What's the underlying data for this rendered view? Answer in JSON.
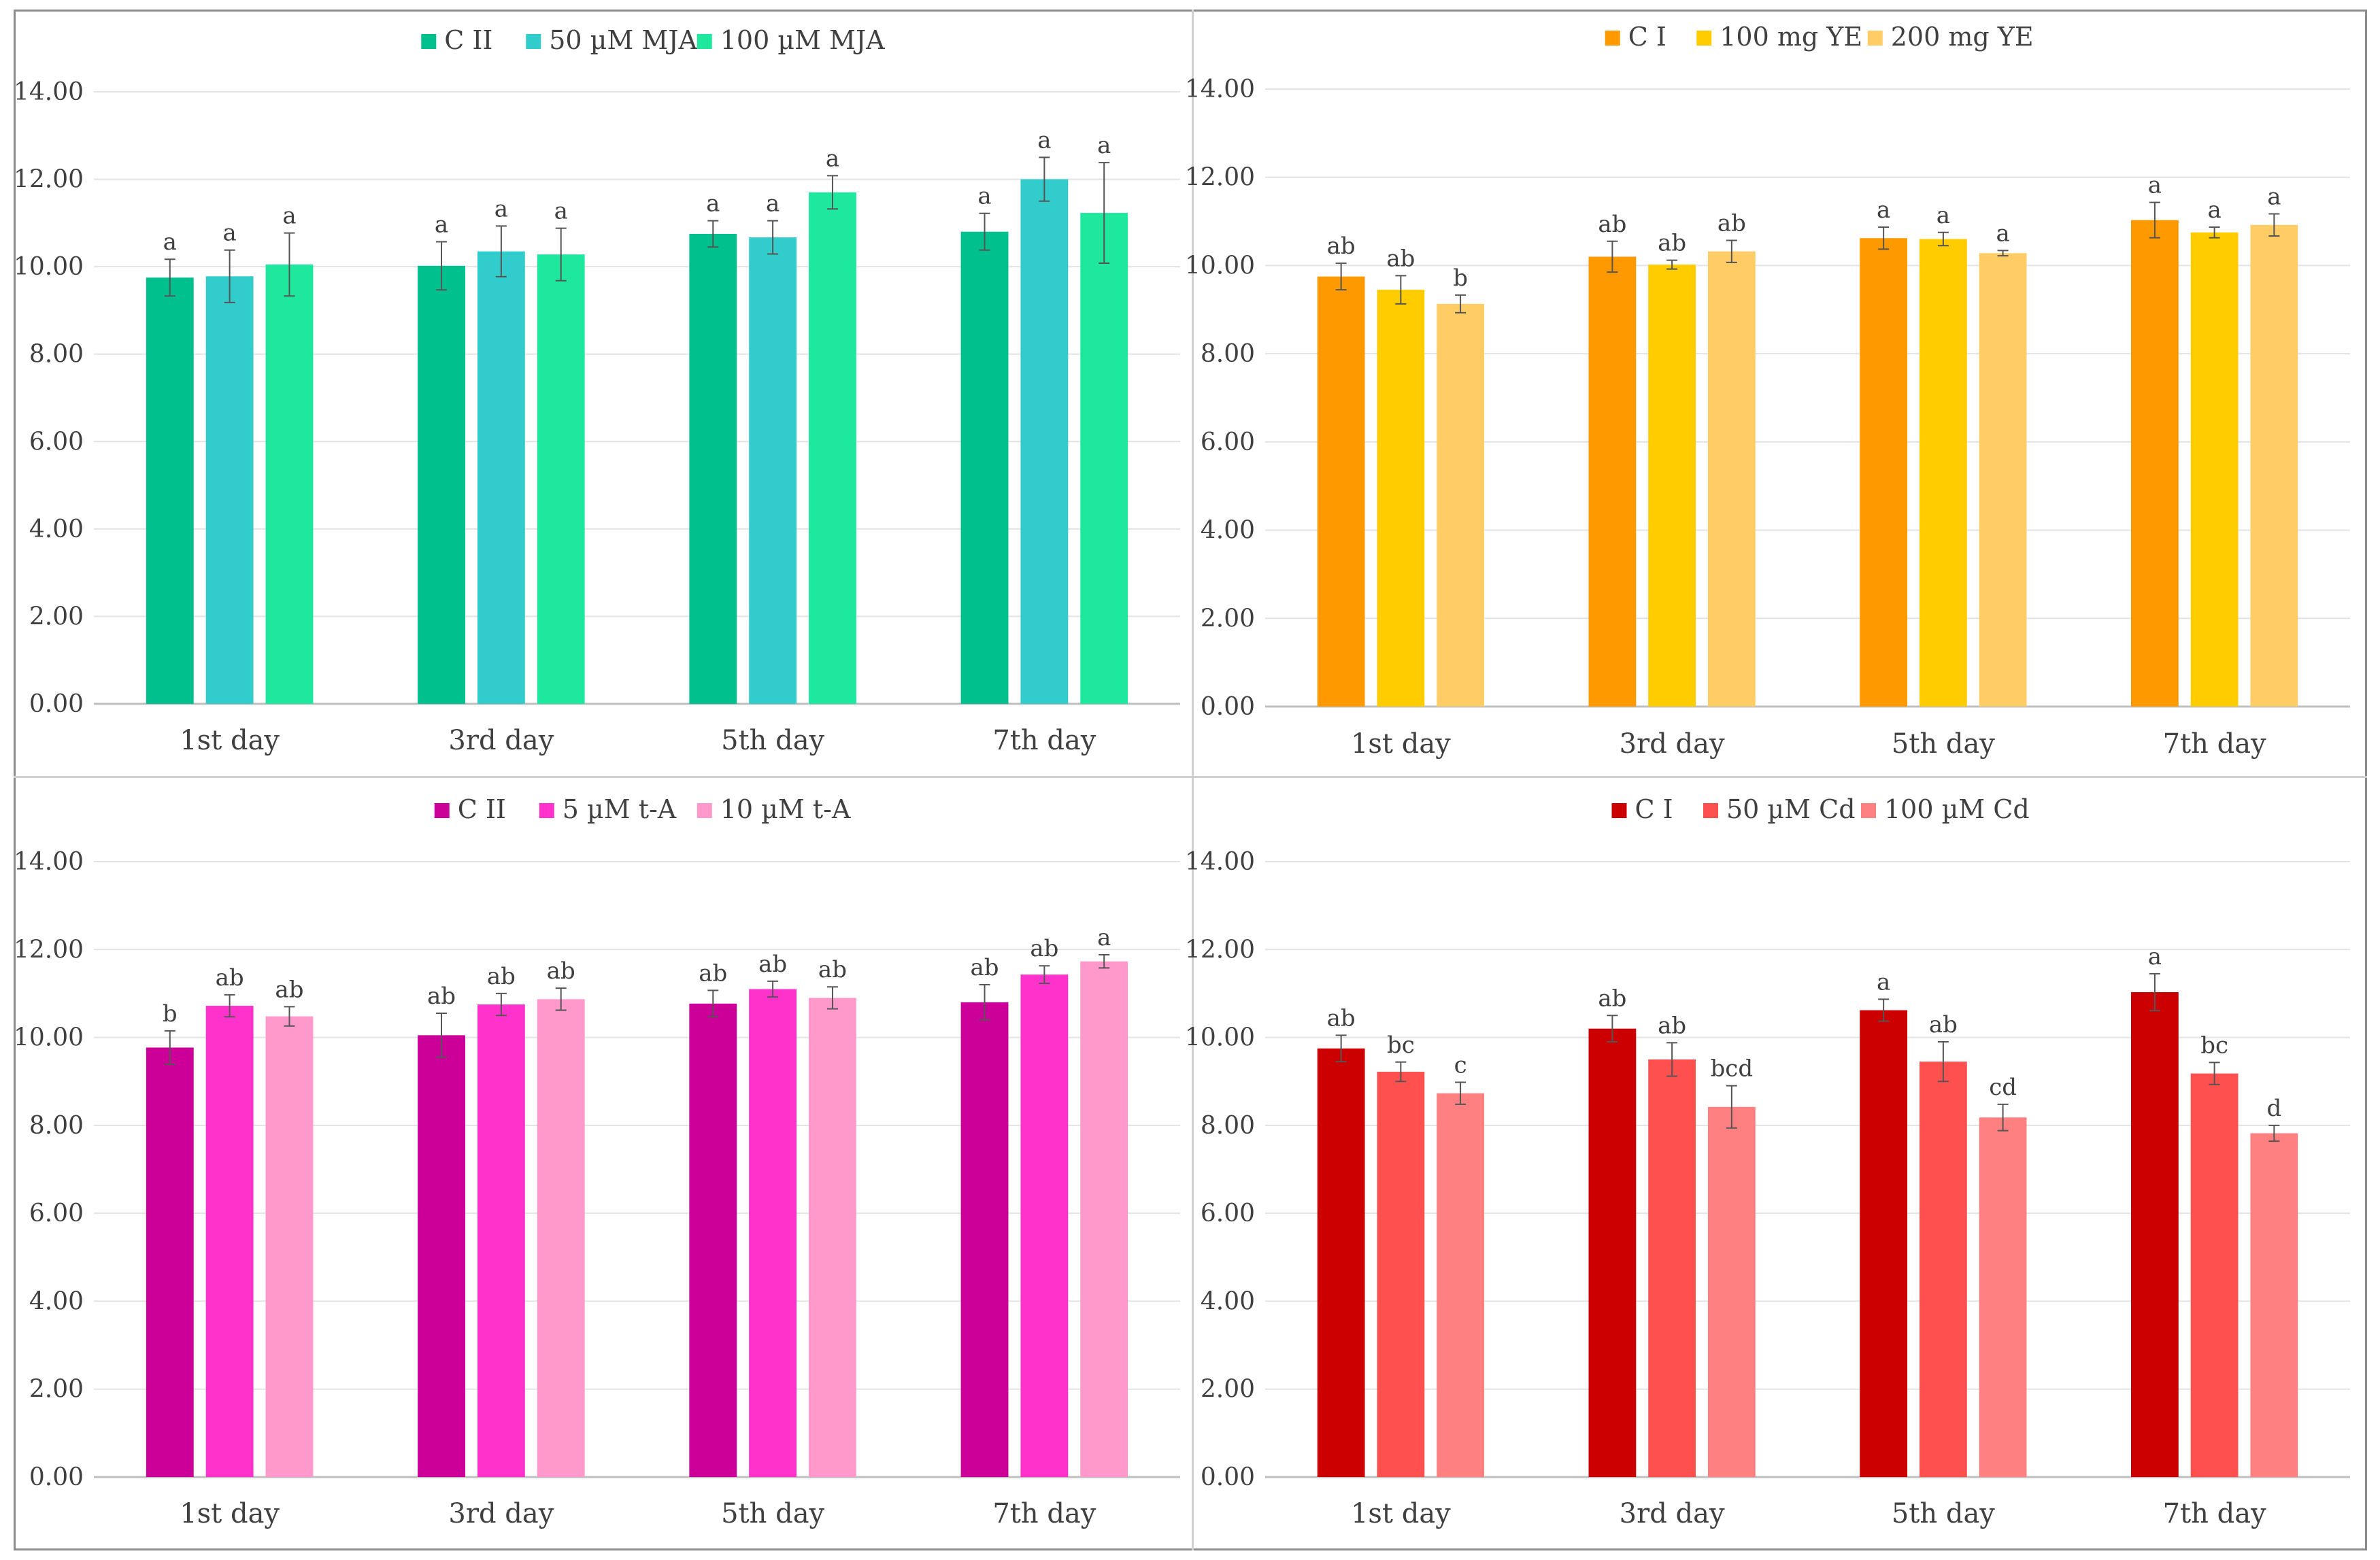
{
  "chart_data": [
    {
      "type": "bar",
      "categories": [
        "1st day",
        "3rd day",
        "5th day",
        "7th day"
      ],
      "ylim": [
        0,
        14
      ],
      "yticks": [
        "0.00",
        "2.00",
        "4.00",
        "6.00",
        "8.00",
        "10.00",
        "12.00",
        "14.00"
      ],
      "legend_position": "top-center",
      "grid": true,
      "series": [
        {
          "name": "C II",
          "color": "#00c08e",
          "values": [
            9.75,
            10.02,
            10.75,
            10.8
          ],
          "errors": [
            0.42,
            0.55,
            0.3,
            0.42
          ],
          "labels": [
            "a",
            "a",
            "a",
            "a"
          ]
        },
        {
          "name": "50 µM MJA",
          "color": "#33cccc",
          "values": [
            9.78,
            10.35,
            10.67,
            12.0
          ],
          "errors": [
            0.6,
            0.58,
            0.38,
            0.5
          ],
          "labels": [
            "a",
            "a",
            "a",
            "a"
          ]
        },
        {
          "name": "100 µM MJA",
          "color": "#1ee89e",
          "values": [
            10.05,
            10.28,
            11.7,
            11.23
          ],
          "errors": [
            0.72,
            0.6,
            0.38,
            1.15
          ],
          "labels": [
            "a",
            "a",
            "a",
            "a"
          ]
        }
      ]
    },
    {
      "type": "bar",
      "categories": [
        "1st day",
        "3rd day",
        "5th day",
        "7th day"
      ],
      "ylim": [
        0,
        14
      ],
      "yticks": [
        "0.00",
        "2.00",
        "4.00",
        "6.00",
        "8.00",
        "10.00",
        "12.00",
        "14.00"
      ],
      "legend_position": "top-center",
      "grid": true,
      "series": [
        {
          "name": "C I",
          "color": "#ff9900",
          "values": [
            9.75,
            10.2,
            10.62,
            11.03
          ],
          "errors": [
            0.3,
            0.35,
            0.25,
            0.4
          ],
          "labels": [
            "ab",
            "ab",
            "a",
            "a"
          ]
        },
        {
          "name": "100 mg YE",
          "color": "#ffcc00",
          "values": [
            9.45,
            10.02,
            10.6,
            10.75
          ],
          "errors": [
            0.32,
            0.1,
            0.15,
            0.12
          ],
          "labels": [
            "ab",
            "ab",
            "a",
            "a"
          ]
        },
        {
          "name": "200 mg YE",
          "color": "#ffcc66",
          "values": [
            9.13,
            10.32,
            10.28,
            10.92
          ],
          "errors": [
            0.2,
            0.25,
            0.06,
            0.25
          ],
          "labels": [
            "b",
            "ab",
            "a",
            "a"
          ]
        }
      ]
    },
    {
      "type": "bar",
      "categories": [
        "1st day",
        "3rd day",
        "5th day",
        "7th day"
      ],
      "ylim": [
        0,
        14
      ],
      "yticks": [
        "0.00",
        "2.00",
        "4.00",
        "6.00",
        "8.00",
        "10.00",
        "12.00",
        "14.00"
      ],
      "legend_position": "top-center",
      "grid": true,
      "series": [
        {
          "name": "C II",
          "color": "#cc0099",
          "values": [
            9.77,
            10.05,
            10.77,
            10.8
          ],
          "errors": [
            0.38,
            0.5,
            0.3,
            0.4
          ],
          "labels": [
            "b",
            "ab",
            "ab",
            "ab"
          ]
        },
        {
          "name": "5 µM t-A",
          "color": "#ff33cc",
          "values": [
            10.72,
            10.75,
            11.1,
            11.43
          ],
          "errors": [
            0.25,
            0.25,
            0.18,
            0.2
          ],
          "labels": [
            "ab",
            "ab",
            "ab",
            "ab"
          ]
        },
        {
          "name": "10 µM t-A",
          "color": "#ff99cc",
          "values": [
            10.48,
            10.87,
            10.9,
            11.73
          ],
          "errors": [
            0.22,
            0.25,
            0.25,
            0.15
          ],
          "labels": [
            "ab",
            "ab",
            "ab",
            "a"
          ]
        }
      ]
    },
    {
      "type": "bar",
      "categories": [
        "1st day",
        "3rd day",
        "5th day",
        "7th day"
      ],
      "ylim": [
        0,
        14
      ],
      "yticks": [
        "0.00",
        "2.00",
        "4.00",
        "6.00",
        "8.00",
        "10.00",
        "12.00",
        "14.00"
      ],
      "legend_position": "top-center",
      "grid": true,
      "series": [
        {
          "name": "C I",
          "color": "#cc0000",
          "values": [
            9.75,
            10.2,
            10.62,
            11.03
          ],
          "errors": [
            0.3,
            0.3,
            0.25,
            0.42
          ],
          "labels": [
            "ab",
            "ab",
            "a",
            "a"
          ]
        },
        {
          "name": "50 µM Cd",
          "color": "#ff5050",
          "values": [
            9.22,
            9.5,
            9.45,
            9.18
          ],
          "errors": [
            0.22,
            0.38,
            0.45,
            0.25
          ],
          "labels": [
            "bc",
            "ab",
            "ab",
            "bc"
          ]
        },
        {
          "name": "100 µM Cd",
          "color": "#ff8080",
          "values": [
            8.73,
            8.42,
            8.18,
            7.82
          ],
          "errors": [
            0.25,
            0.48,
            0.3,
            0.18
          ],
          "labels": [
            "c",
            "bcd",
            "cd",
            "d"
          ]
        }
      ]
    }
  ]
}
